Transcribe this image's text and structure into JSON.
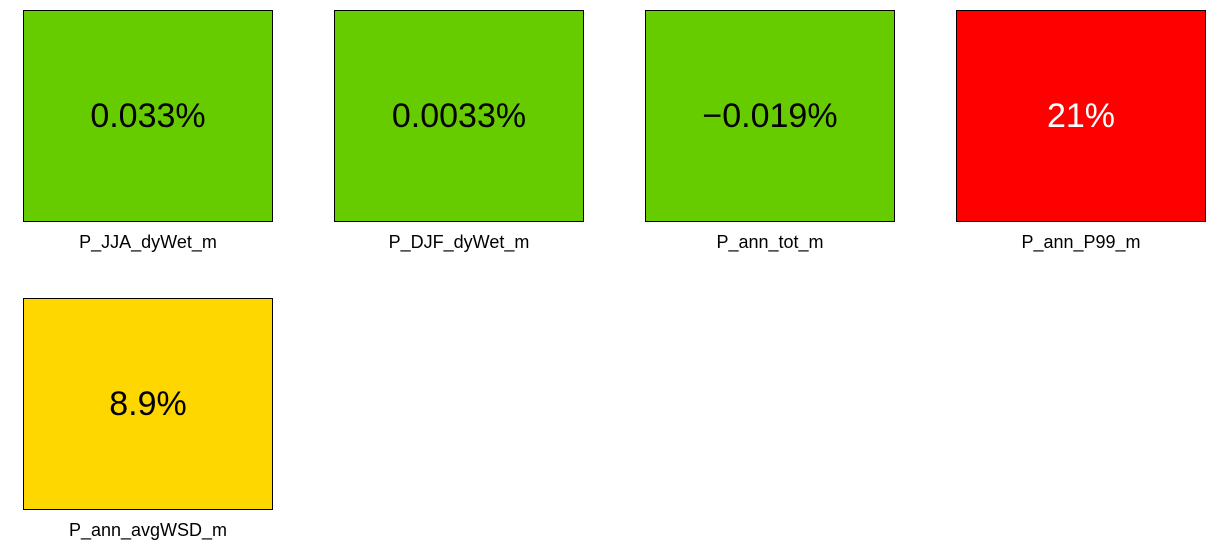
{
  "chart_data": {
    "type": "heatmap",
    "tiles": [
      {
        "label": "P_JJA_dyWet_m",
        "value_text": "0.033%",
        "value": 0.033,
        "color": "#66CC00",
        "text_color": "#000000"
      },
      {
        "label": "P_DJF_dyWet_m",
        "value_text": "0.0033%",
        "value": 0.0033,
        "color": "#66CC00",
        "text_color": "#000000"
      },
      {
        "label": "P_ann_tot_m",
        "value_text": "−0.019%",
        "value": -0.019,
        "color": "#66CC00",
        "text_color": "#000000"
      },
      {
        "label": "P_ann_P99_m",
        "value_text": "21%",
        "value": 21,
        "color": "#FF0000",
        "text_color": "#FFFFFF"
      },
      {
        "label": "P_ann_avgWSD_m",
        "value_text": "8.9%",
        "value": 8.9,
        "color": "#FFD700",
        "text_color": "#000000"
      }
    ]
  }
}
